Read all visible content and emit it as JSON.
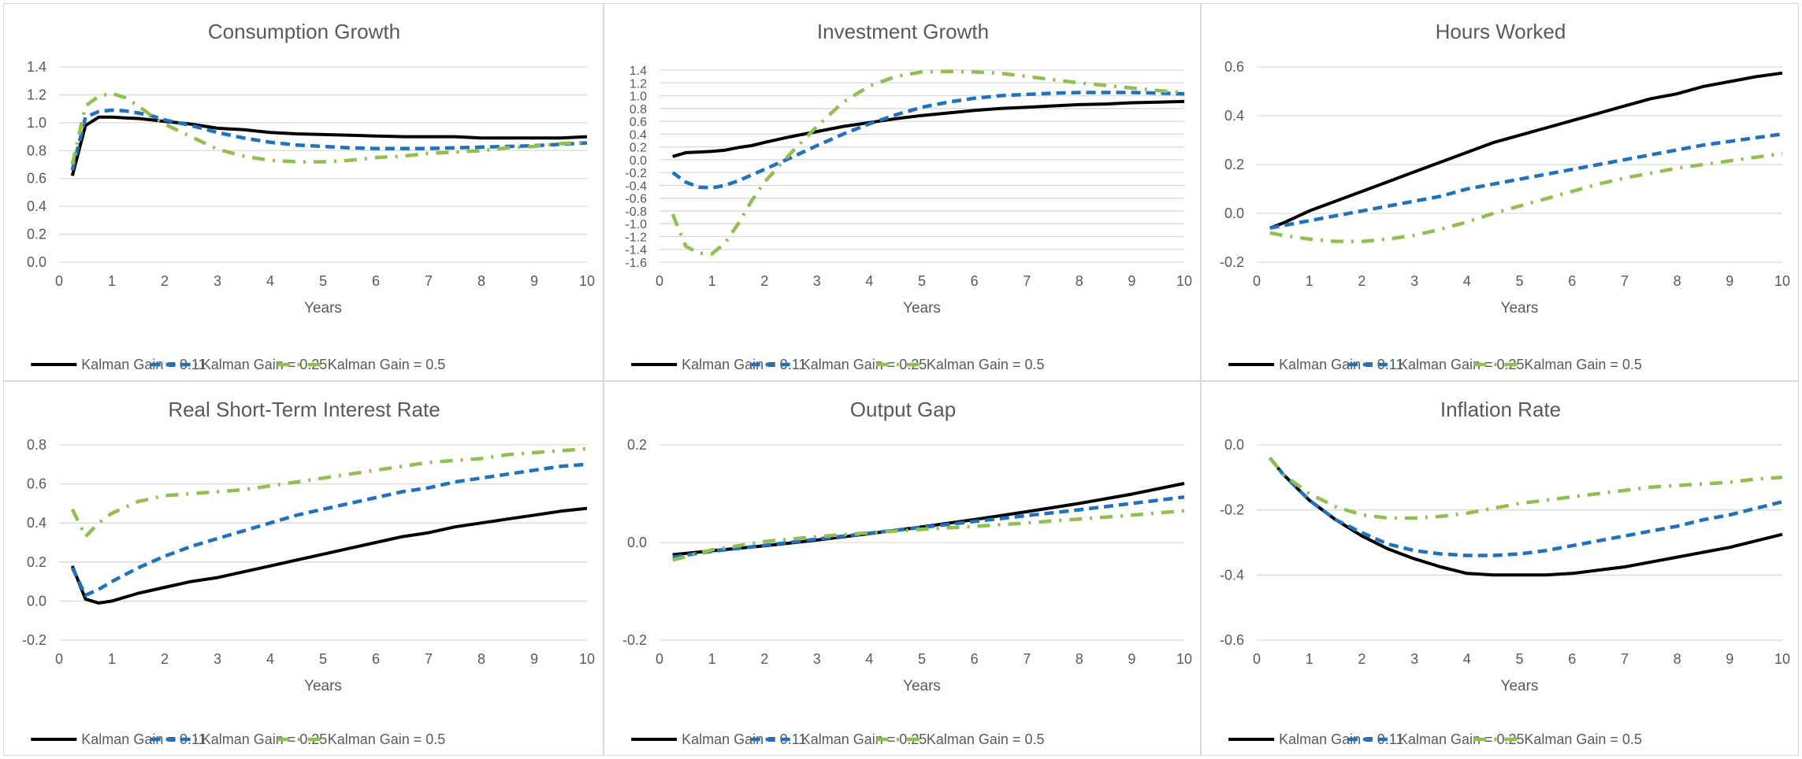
{
  "chart_data": [
    {
      "type": "line",
      "title": "Consumption Growth",
      "xlabel": "Years",
      "xlim": [
        0,
        10
      ],
      "xticks": [
        0,
        1,
        2,
        3,
        4,
        5,
        6,
        7,
        8,
        9,
        10
      ],
      "ylim": [
        0,
        1.4
      ],
      "yticks": [
        "0.0",
        "0.2",
        "0.4",
        "0.6",
        "0.8",
        "1.0",
        "1.2",
        "1.4"
      ],
      "grid": true,
      "legend": "bottom",
      "x": [
        0.25,
        0.5,
        0.75,
        1,
        1.25,
        1.5,
        1.75,
        2,
        2.5,
        3,
        3.5,
        4,
        4.5,
        5,
        5.5,
        6,
        6.5,
        7,
        7.5,
        8,
        8.5,
        9,
        9.5,
        10
      ],
      "series": [
        {
          "name": "Kalman Gain = 0.11",
          "values": [
            0.62,
            0.98,
            1.04,
            1.04,
            1.035,
            1.03,
            1.02,
            1.01,
            0.99,
            0.96,
            0.95,
            0.93,
            0.92,
            0.915,
            0.91,
            0.905,
            0.9,
            0.9,
            0.9,
            0.89,
            0.89,
            0.89,
            0.89,
            0.9
          ]
        },
        {
          "name": "Kalman Gain = 0.25",
          "values": [
            0.66,
            1.04,
            1.08,
            1.09,
            1.085,
            1.07,
            1.05,
            1.02,
            0.98,
            0.93,
            0.89,
            0.86,
            0.84,
            0.83,
            0.82,
            0.815,
            0.815,
            0.815,
            0.82,
            0.825,
            0.83,
            0.835,
            0.845,
            0.855
          ]
        },
        {
          "name": "Kalman Gain = 0.5",
          "values": [
            0.7,
            1.12,
            1.19,
            1.21,
            1.18,
            1.12,
            1.05,
            0.99,
            0.9,
            0.81,
            0.76,
            0.73,
            0.72,
            0.72,
            0.73,
            0.75,
            0.76,
            0.78,
            0.79,
            0.8,
            0.82,
            0.83,
            0.85,
            0.86
          ]
        }
      ]
    },
    {
      "type": "line",
      "title": "Investment Growth",
      "xlabel": "Years",
      "xlim": [
        0,
        10
      ],
      "xticks": [
        0,
        1,
        2,
        3,
        4,
        5,
        6,
        7,
        8,
        9,
        10
      ],
      "ylim": [
        -1.6,
        1.4
      ],
      "yticks": [
        "-1.6",
        "-1.4",
        "-1.2",
        "-1.0",
        "-0.8",
        "-0.6",
        "-0.4",
        "-0.2",
        "0.0",
        "0.2",
        "0.4",
        "0.6",
        "0.8",
        "1.0",
        "1.2",
        "1.4"
      ],
      "grid": true,
      "legend": "bottom",
      "x": [
        0.25,
        0.5,
        0.75,
        1,
        1.25,
        1.5,
        1.75,
        2,
        2.5,
        3,
        3.5,
        4,
        4.5,
        5,
        5.5,
        6,
        6.5,
        7,
        7.5,
        8,
        8.5,
        9,
        9.5,
        10
      ],
      "series": [
        {
          "name": "Kalman Gain = 0.11",
          "values": [
            0.05,
            0.11,
            0.12,
            0.13,
            0.15,
            0.19,
            0.22,
            0.27,
            0.36,
            0.44,
            0.52,
            0.58,
            0.64,
            0.69,
            0.73,
            0.77,
            0.8,
            0.82,
            0.84,
            0.86,
            0.87,
            0.89,
            0.9,
            0.91
          ]
        },
        {
          "name": "Kalman Gain = 0.25",
          "values": [
            -0.2,
            -0.35,
            -0.43,
            -0.44,
            -0.4,
            -0.33,
            -0.24,
            -0.15,
            0.03,
            0.22,
            0.4,
            0.56,
            0.7,
            0.82,
            0.9,
            0.96,
            1.0,
            1.02,
            1.04,
            1.05,
            1.05,
            1.05,
            1.04,
            1.03
          ]
        },
        {
          "name": "Kalman Gain = 0.5",
          "values": [
            -0.85,
            -1.35,
            -1.46,
            -1.47,
            -1.3,
            -1.0,
            -0.65,
            -0.35,
            0.1,
            0.52,
            0.9,
            1.15,
            1.3,
            1.37,
            1.38,
            1.37,
            1.35,
            1.3,
            1.25,
            1.2,
            1.16,
            1.12,
            1.08,
            1.05
          ]
        }
      ]
    },
    {
      "type": "line",
      "title": "Hours Worked",
      "xlabel": "Years",
      "xlim": [
        0,
        10
      ],
      "xticks": [
        0,
        1,
        2,
        3,
        4,
        5,
        6,
        7,
        8,
        9,
        10
      ],
      "ylim": [
        -0.2,
        0.6
      ],
      "yticks": [
        "-0.2",
        "0.0",
        "0.2",
        "0.4",
        "0.6"
      ],
      "grid": true,
      "legend": "bottom",
      "x": [
        0.25,
        0.5,
        1,
        1.5,
        2,
        2.5,
        3,
        3.5,
        4,
        4.5,
        5,
        5.5,
        6,
        6.5,
        7,
        7.5,
        8,
        8.5,
        9,
        9.5,
        10
      ],
      "series": [
        {
          "name": "Kalman Gain = 0.11",
          "values": [
            -0.06,
            -0.04,
            0.01,
            0.05,
            0.09,
            0.13,
            0.17,
            0.21,
            0.25,
            0.29,
            0.32,
            0.35,
            0.38,
            0.41,
            0.44,
            0.47,
            0.49,
            0.52,
            0.54,
            0.56,
            0.575
          ]
        },
        {
          "name": "Kalman Gain = 0.25",
          "values": [
            -0.06,
            -0.05,
            -0.03,
            -0.01,
            0.01,
            0.03,
            0.05,
            0.07,
            0.1,
            0.12,
            0.14,
            0.16,
            0.18,
            0.2,
            0.22,
            0.24,
            0.26,
            0.28,
            0.295,
            0.31,
            0.325
          ]
        },
        {
          "name": "Kalman Gain = 0.5",
          "values": [
            -0.08,
            -0.09,
            -0.105,
            -0.115,
            -0.115,
            -0.105,
            -0.09,
            -0.065,
            -0.035,
            0.0,
            0.03,
            0.06,
            0.09,
            0.12,
            0.145,
            0.165,
            0.185,
            0.2,
            0.215,
            0.23,
            0.245
          ]
        }
      ]
    },
    {
      "type": "line",
      "title": "Real Short-Term Interest Rate",
      "xlabel": "Years",
      "xlim": [
        0,
        10
      ],
      "xticks": [
        0,
        1,
        2,
        3,
        4,
        5,
        6,
        7,
        8,
        9,
        10
      ],
      "ylim": [
        -0.2,
        0.8
      ],
      "yticks": [
        "-0.2",
        "0.0",
        "0.2",
        "0.4",
        "0.6",
        "0.8"
      ],
      "grid": true,
      "legend": "bottom",
      "x": [
        0.25,
        0.5,
        0.75,
        1,
        1.5,
        2,
        2.5,
        3,
        3.5,
        4,
        4.5,
        5,
        5.5,
        6,
        6.5,
        7,
        7.5,
        8,
        8.5,
        9,
        9.5,
        10
      ],
      "series": [
        {
          "name": "Kalman Gain = 0.11",
          "values": [
            0.18,
            0.01,
            -0.01,
            0.0,
            0.04,
            0.07,
            0.1,
            0.12,
            0.15,
            0.18,
            0.21,
            0.24,
            0.27,
            0.3,
            0.33,
            0.35,
            0.38,
            0.4,
            0.42,
            0.44,
            0.46,
            0.475
          ]
        },
        {
          "name": "Kalman Gain = 0.25",
          "values": [
            0.17,
            0.03,
            0.06,
            0.1,
            0.17,
            0.23,
            0.28,
            0.32,
            0.36,
            0.4,
            0.44,
            0.47,
            0.5,
            0.53,
            0.56,
            0.58,
            0.61,
            0.63,
            0.65,
            0.67,
            0.69,
            0.7
          ]
        },
        {
          "name": "Kalman Gain = 0.5",
          "values": [
            0.47,
            0.33,
            0.4,
            0.45,
            0.51,
            0.54,
            0.55,
            0.56,
            0.57,
            0.59,
            0.61,
            0.63,
            0.65,
            0.67,
            0.69,
            0.71,
            0.72,
            0.73,
            0.75,
            0.76,
            0.77,
            0.78
          ]
        }
      ]
    },
    {
      "type": "line",
      "title": "Output Gap",
      "xlabel": "Years",
      "xlim": [
        0,
        10
      ],
      "xticks": [
        0,
        1,
        2,
        3,
        4,
        5,
        6,
        7,
        8,
        9,
        10
      ],
      "ylim": [
        -0.2,
        0.2
      ],
      "yticks": [
        "-0.2",
        "0.0",
        "0.2"
      ],
      "grid": true,
      "legend": "bottom",
      "x": [
        0.25,
        1,
        2,
        3,
        4,
        5,
        6,
        7,
        8,
        9,
        10
      ],
      "series": [
        {
          "name": "Kalman Gain = 0.11",
          "values": [
            -0.025,
            -0.017,
            -0.007,
            0.005,
            0.018,
            0.032,
            0.047,
            0.063,
            0.08,
            0.099,
            0.121
          ]
        },
        {
          "name": "Kalman Gain = 0.25",
          "values": [
            -0.03,
            -0.018,
            -0.006,
            0.007,
            0.019,
            0.031,
            0.043,
            0.055,
            0.067,
            0.08,
            0.093
          ]
        },
        {
          "name": "Kalman Gain = 0.5",
          "values": [
            -0.036,
            -0.015,
            0.002,
            0.012,
            0.02,
            0.027,
            0.033,
            0.04,
            0.048,
            0.056,
            0.065
          ]
        }
      ]
    },
    {
      "type": "line",
      "title": "Inflation Rate",
      "xlabel": "Years",
      "xlim": [
        0,
        10
      ],
      "xticks": [
        0,
        1,
        2,
        3,
        4,
        5,
        6,
        7,
        8,
        9,
        10
      ],
      "ylim": [
        -0.6,
        0.0
      ],
      "yticks": [
        "-0.6",
        "-0.4",
        "-0.2",
        "0.0"
      ],
      "grid": true,
      "legend": "bottom",
      "x": [
        0.25,
        0.5,
        1,
        1.5,
        2,
        2.5,
        3,
        3.5,
        4,
        4.5,
        5,
        5.5,
        6,
        6.5,
        7,
        7.5,
        8,
        8.5,
        9,
        9.5,
        10
      ],
      "series": [
        {
          "name": "Kalman Gain = 0.11",
          "values": [
            -0.04,
            -0.09,
            -0.17,
            -0.23,
            -0.28,
            -0.32,
            -0.35,
            -0.375,
            -0.395,
            -0.4,
            -0.4,
            -0.4,
            -0.395,
            -0.385,
            -0.375,
            -0.36,
            -0.345,
            -0.33,
            -0.315,
            -0.295,
            -0.275
          ]
        },
        {
          "name": "Kalman Gain = 0.25",
          "values": [
            -0.04,
            -0.09,
            -0.17,
            -0.23,
            -0.27,
            -0.305,
            -0.325,
            -0.335,
            -0.34,
            -0.34,
            -0.335,
            -0.325,
            -0.31,
            -0.295,
            -0.28,
            -0.265,
            -0.25,
            -0.23,
            -0.215,
            -0.195,
            -0.175
          ]
        },
        {
          "name": "Kalman Gain = 0.5",
          "values": [
            -0.04,
            -0.09,
            -0.15,
            -0.19,
            -0.215,
            -0.225,
            -0.225,
            -0.22,
            -0.21,
            -0.195,
            -0.18,
            -0.17,
            -0.16,
            -0.15,
            -0.14,
            -0.13,
            -0.125,
            -0.12,
            -0.115,
            -0.105,
            -0.1
          ]
        }
      ]
    }
  ],
  "styles": {
    "series_colors": [
      "#000000",
      "#1f72c0",
      "#92c050"
    ],
    "series_dash": [
      "solid",
      "dash",
      "dash-dot"
    ]
  }
}
